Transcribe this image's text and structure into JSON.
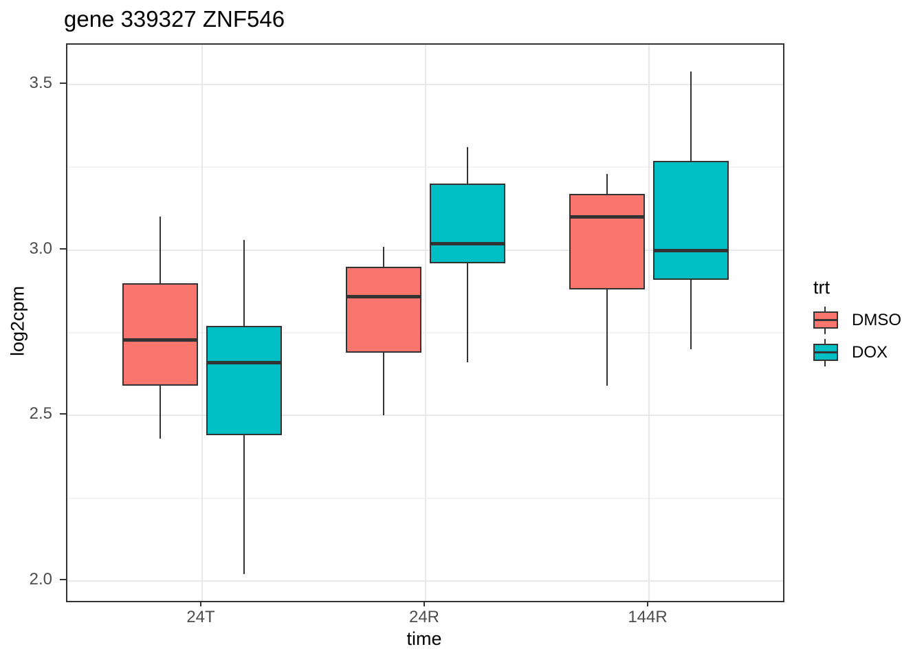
{
  "chart_data": {
    "type": "boxplot",
    "title": "gene 339327 ZNF546",
    "xlabel": "time",
    "ylabel": "log2cpm",
    "categories": [
      "24T",
      "24R",
      "144R"
    ],
    "y_ticks": [
      2.0,
      2.5,
      3.0,
      3.5
    ],
    "y_tick_labels": [
      "2.0",
      "2.5",
      "3.0",
      "3.5"
    ],
    "y_minor_gridlines": [
      2.25,
      2.75,
      3.25
    ],
    "ylim": [
      1.94,
      3.62
    ],
    "grid": {
      "major": true,
      "minor": true
    },
    "legend": {
      "title": "trt",
      "position": "right",
      "entries": [
        {
          "label": "DMSO",
          "color": "#F8766D"
        },
        {
          "label": "DOX",
          "color": "#00BFC4"
        }
      ]
    },
    "series": [
      {
        "name": "DMSO",
        "color": "#F8766D",
        "boxes": [
          {
            "category": "24T",
            "whisker_low": 2.43,
            "q1": 2.59,
            "median": 2.73,
            "q3": 2.9,
            "whisker_high": 3.1
          },
          {
            "category": "24R",
            "whisker_low": 2.5,
            "q1": 2.69,
            "median": 2.86,
            "q3": 2.95,
            "whisker_high": 3.01
          },
          {
            "category": "144R",
            "whisker_low": 2.59,
            "q1": 2.88,
            "median": 3.1,
            "q3": 3.17,
            "whisker_high": 3.23
          }
        ]
      },
      {
        "name": "DOX",
        "color": "#00BFC4",
        "boxes": [
          {
            "category": "24T",
            "whisker_low": 2.02,
            "q1": 2.44,
            "median": 2.66,
            "q3": 2.77,
            "whisker_high": 3.03
          },
          {
            "category": "24R",
            "whisker_low": 2.66,
            "q1": 2.96,
            "median": 3.02,
            "q3": 3.2,
            "whisker_high": 3.31
          },
          {
            "category": "144R",
            "whisker_low": 2.7,
            "q1": 2.91,
            "median": 3.0,
            "q3": 3.27,
            "whisker_high": 3.54
          }
        ]
      }
    ],
    "styles": {
      "line_color": "#333333",
      "tick_label_color": "#4D4D4D",
      "grid_major_color": "#E8E8E8",
      "grid_minor_color": "#F3F3F3",
      "panel_background": "#FFFFFF"
    }
  }
}
